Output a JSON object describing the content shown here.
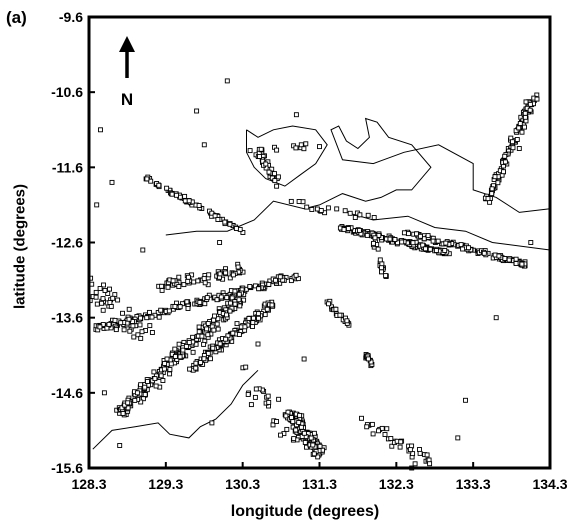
{
  "figure": {
    "panel_label": "(a)",
    "north_label": "N"
  },
  "chart_data": {
    "type": "scatter",
    "title": "",
    "xlabel": "longitude (degrees)",
    "ylabel": "latitude (degrees)",
    "xlim": [
      128.3,
      134.3
    ],
    "ylim": [
      -15.6,
      -9.6
    ],
    "x_ticks": [
      128.3,
      129.3,
      130.3,
      131.3,
      132.3,
      133.3,
      134.3
    ],
    "x_tick_labels": [
      "128.3",
      "129.3",
      "130.3",
      "131.3",
      "132.3",
      "133.3",
      "134.3"
    ],
    "y_ticks": [
      -9.6,
      -10.6,
      -11.6,
      -12.6,
      -13.6,
      -14.6,
      -15.6
    ],
    "y_tick_labels": [
      "-9.6",
      "-10.6",
      "-11.6",
      "-12.6",
      "-13.6",
      "-14.6",
      "-15.6"
    ],
    "grid": false,
    "marker": "open-square",
    "point_clusters": [
      {
        "from": [
          129.05,
          -11.75
        ],
        "to": [
          130.3,
          -12.45
        ],
        "count": 70,
        "spread": 0.04
      },
      {
        "from": [
          130.5,
          -11.4
        ],
        "to": [
          130.75,
          -11.8
        ],
        "count": 40,
        "spread": 0.08
      },
      {
        "from": [
          131.6,
          -12.4
        ],
        "to": [
          133.0,
          -12.75
        ],
        "count": 160,
        "spread": 0.05
      },
      {
        "from": [
          132.4,
          -12.45
        ],
        "to": [
          134.0,
          -12.9
        ],
        "count": 120,
        "spread": 0.05
      },
      {
        "from": [
          133.45,
          -12.1
        ],
        "to": [
          134.1,
          -10.65
        ],
        "count": 120,
        "spread": 0.07
      },
      {
        "from": [
          128.4,
          -13.75
        ],
        "to": [
          131.0,
          -13.05
        ],
        "count": 170,
        "spread": 0.08
      },
      {
        "from": [
          129.2,
          -13.2
        ],
        "to": [
          130.3,
          -12.95
        ],
        "count": 60,
        "spread": 0.12
      },
      {
        "from": [
          128.7,
          -14.85
        ],
        "to": [
          130.3,
          -13.3
        ],
        "count": 230,
        "spread": 0.13
      },
      {
        "from": [
          129.6,
          -14.3
        ],
        "to": [
          130.7,
          -13.4
        ],
        "count": 120,
        "spread": 0.1
      },
      {
        "from": [
          130.9,
          -14.85
        ],
        "to": [
          131.3,
          -15.4
        ],
        "count": 150,
        "spread": 0.12
      },
      {
        "from": [
          131.4,
          -13.4
        ],
        "to": [
          131.7,
          -13.7
        ],
        "count": 25,
        "spread": 0.05
      },
      {
        "from": [
          131.9,
          -14.1
        ],
        "to": [
          132.0,
          -14.25
        ],
        "count": 15,
        "spread": 0.04
      },
      {
        "from": [
          132.0,
          -12.55
        ],
        "to": [
          132.15,
          -13.05
        ],
        "count": 25,
        "spread": 0.05
      },
      {
        "from": [
          128.3,
          -13.2
        ],
        "to": [
          129.0,
          -13.8
        ],
        "count": 60,
        "spread": 0.25
      },
      {
        "from": [
          131.9,
          -15.0
        ],
        "to": [
          132.8,
          -15.55
        ],
        "count": 35,
        "spread": 0.15
      },
      {
        "from": [
          130.3,
          -11.4
        ],
        "to": [
          131.3,
          -11.3
        ],
        "count": 12,
        "spread": 0.06
      },
      {
        "from": [
          130.3,
          -14.3
        ],
        "to": [
          131.0,
          -15.2
        ],
        "count": 25,
        "spread": 0.25
      },
      {
        "from": [
          131.0,
          -12.1
        ],
        "to": [
          132.0,
          -12.25
        ],
        "count": 20,
        "spread": 0.1
      }
    ],
    "scattered_points": [
      [
        130.1,
        -10.45
      ],
      [
        129.7,
        -10.85
      ],
      [
        128.45,
        -11.1
      ],
      [
        129.8,
        -11.3
      ],
      [
        131.0,
        -10.9
      ],
      [
        130.0,
        -12.6
      ],
      [
        129.0,
        -12.7
      ],
      [
        128.4,
        -12.1
      ],
      [
        128.6,
        -11.8
      ],
      [
        133.2,
        -14.7
      ],
      [
        133.6,
        -13.6
      ],
      [
        130.5,
        -13.95
      ],
      [
        129.9,
        -15.0
      ],
      [
        128.7,
        -15.3
      ],
      [
        133.1,
        -15.2
      ],
      [
        134.05,
        -12.6
      ],
      [
        133.9,
        -11.35
      ],
      [
        132.5,
        -15.6
      ],
      [
        131.1,
        -14.15
      ],
      [
        128.5,
        -14.6
      ]
    ],
    "coastline_segments": [
      [
        [
          130.35,
          -11.1
        ],
        [
          130.5,
          -11.2
        ],
        [
          130.7,
          -11.1
        ],
        [
          130.95,
          -11.05
        ],
        [
          131.25,
          -11.1
        ],
        [
          131.4,
          -11.3
        ],
        [
          131.25,
          -11.55
        ],
        [
          131.05,
          -11.7
        ],
        [
          130.85,
          -11.85
        ],
        [
          130.6,
          -11.75
        ],
        [
          130.45,
          -11.6
        ],
        [
          130.35,
          -11.4
        ],
        [
          130.35,
          -11.1
        ]
      ],
      [
        [
          129.3,
          -12.5
        ],
        [
          129.7,
          -12.45
        ],
        [
          130.1,
          -12.45
        ],
        [
          130.45,
          -12.3
        ],
        [
          130.7,
          -12.05
        ],
        [
          131.1,
          -12.15
        ],
        [
          131.3,
          -12.1
        ],
        [
          131.6,
          -11.95
        ],
        [
          131.9,
          -12.05
        ],
        [
          132.1,
          -12.0
        ],
        [
          132.3,
          -11.9
        ],
        [
          132.5,
          -11.9
        ],
        [
          132.75,
          -11.6
        ],
        [
          132.5,
          -11.3
        ],
        [
          132.2,
          -11.2
        ],
        [
          132.05,
          -11.0
        ],
        [
          131.9,
          -10.95
        ],
        [
          131.95,
          -11.2
        ],
        [
          131.8,
          -11.35
        ],
        [
          131.65,
          -11.25
        ],
        [
          131.55,
          -11.05
        ],
        [
          131.45,
          -11.1
        ],
        [
          131.6,
          -11.5
        ],
        [
          132.0,
          -11.55
        ],
        [
          132.4,
          -11.4
        ],
        [
          132.85,
          -11.3
        ],
        [
          133.3,
          -11.55
        ],
        [
          133.3,
          -11.9
        ],
        [
          133.6,
          -12.0
        ],
        [
          133.9,
          -12.2
        ],
        [
          134.3,
          -12.15
        ]
      ],
      [
        [
          131.65,
          -12.2
        ],
        [
          132.0,
          -12.3
        ],
        [
          132.45,
          -12.25
        ],
        [
          132.8,
          -12.4
        ],
        [
          133.2,
          -12.45
        ],
        [
          133.55,
          -12.6
        ],
        [
          134.3,
          -12.7
        ]
      ],
      [
        [
          128.35,
          -15.35
        ],
        [
          128.6,
          -15.1
        ],
        [
          128.9,
          -15.05
        ],
        [
          129.2,
          -15.0
        ],
        [
          129.35,
          -15.15
        ],
        [
          129.6,
          -15.2
        ],
        [
          129.75,
          -15.05
        ],
        [
          129.95,
          -14.95
        ],
        [
          130.15,
          -14.75
        ],
        [
          130.3,
          -14.5
        ],
        [
          130.5,
          -14.3
        ]
      ]
    ]
  }
}
